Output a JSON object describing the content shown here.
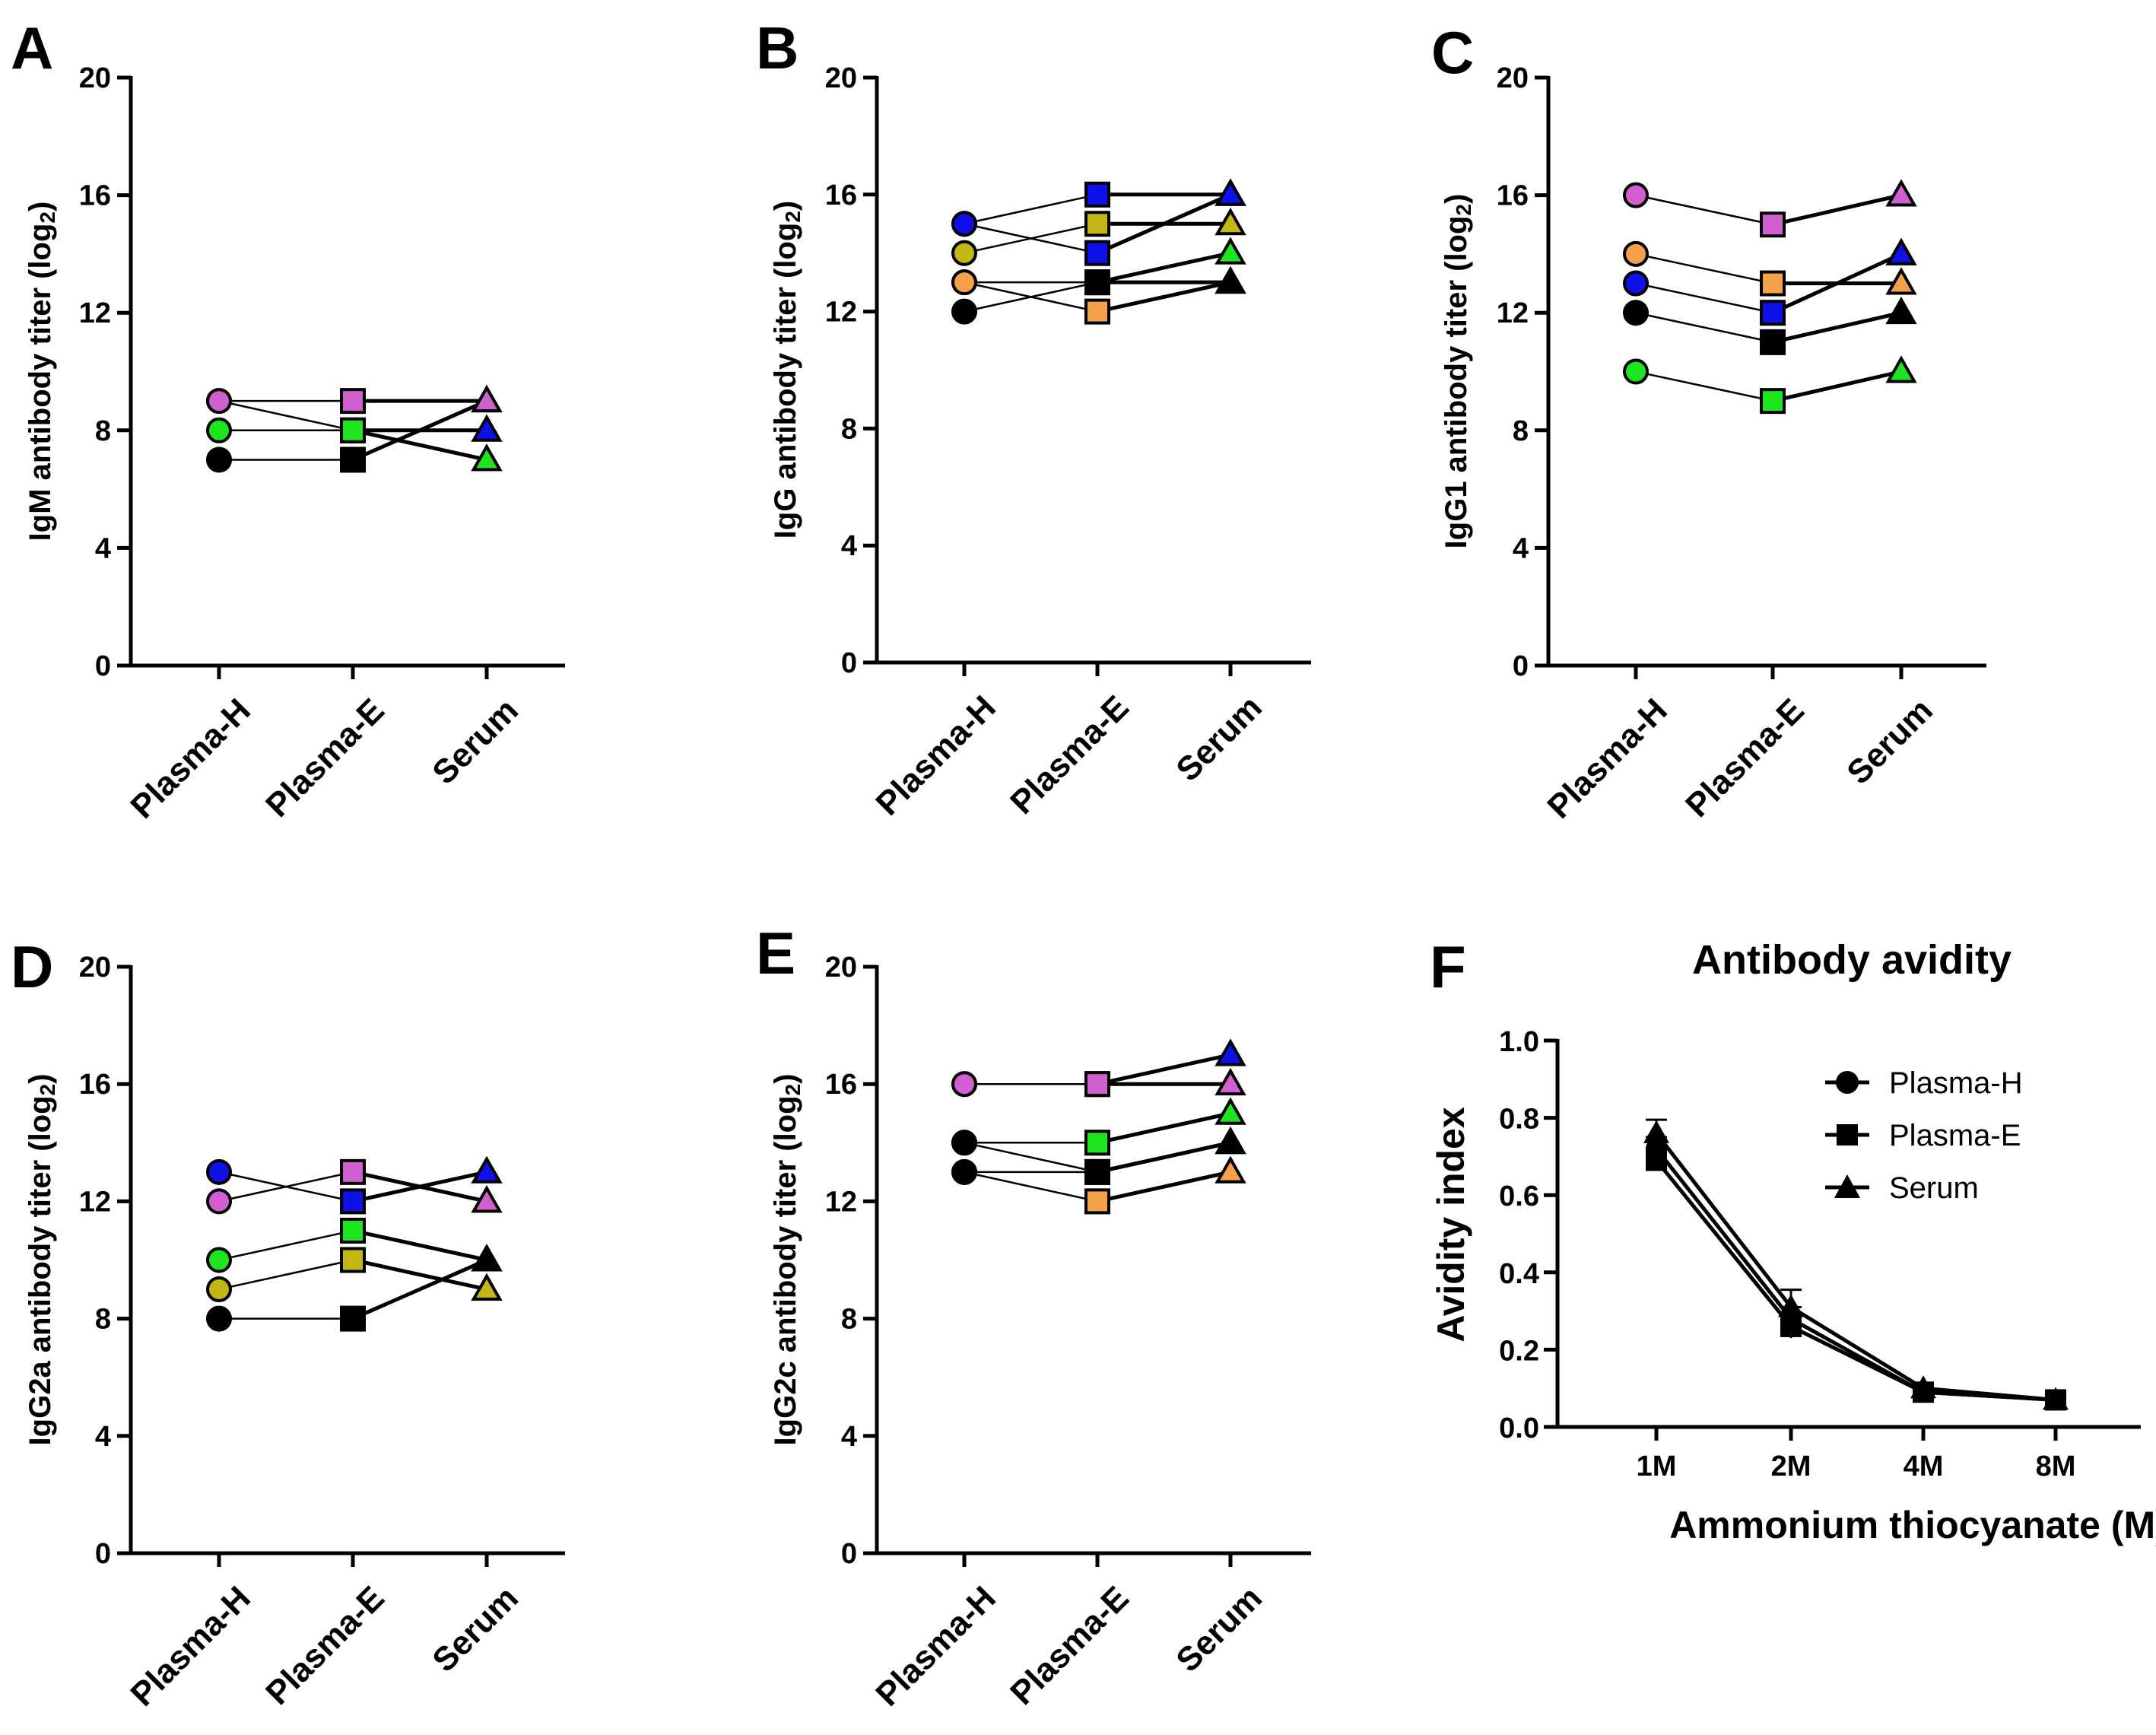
{
  "categories": [
    "Plasma-H",
    "Plasma-E",
    "Serum"
  ],
  "colors": {
    "blue": "#1010e8",
    "green": "#1ee61e",
    "magenta": "#d05fd0",
    "black": "#000000",
    "olive": "#c3b716",
    "orange": "#f5a04a",
    "gray": "#999999"
  },
  "chart_data": [
    {
      "type": "line",
      "panel": "A",
      "ylabel_main": "IgM antibody titer  (log",
      "ylabel_sub": "2",
      "ylabel_close": ")",
      "yticks": [
        "0",
        "4",
        "8",
        "12",
        "16",
        "20"
      ],
      "ylim": [
        0,
        20
      ],
      "series": [
        {
          "color": "blue",
          "values": [
            9,
            8,
            8
          ]
        },
        {
          "color": "green",
          "values": [
            8,
            8,
            7
          ]
        },
        {
          "color": "black",
          "values": [
            7,
            7,
            9
          ]
        },
        {
          "color": "magenta",
          "values": [
            9,
            9,
            9
          ]
        }
      ]
    },
    {
      "type": "line",
      "panel": "B",
      "ylabel_main": "IgG antibody titer  (log",
      "ylabel_sub": "2",
      "ylabel_close": ")",
      "yticks": [
        "0",
        "4",
        "8",
        "12",
        "16",
        "20"
      ],
      "ylim": [
        0,
        20
      ],
      "series": [
        {
          "color": "blue",
          "values": [
            15,
            16,
            16
          ]
        },
        {
          "color": "blue",
          "values": [
            15,
            14,
            16
          ]
        },
        {
          "color": "olive",
          "values": [
            14,
            15,
            15
          ]
        },
        {
          "color": "green",
          "values": [
            13,
            13,
            14
          ]
        },
        {
          "color": "orange",
          "values": [
            13,
            12,
            13
          ]
        },
        {
          "color": "black",
          "values": [
            12,
            13,
            13
          ]
        }
      ]
    },
    {
      "type": "line",
      "panel": "C",
      "ylabel_main": "IgG1 antibody titer  (log",
      "ylabel_sub": "2",
      "ylabel_close": ")",
      "yticks": [
        "0",
        "4",
        "8",
        "12",
        "16",
        "20"
      ],
      "ylim": [
        0,
        20
      ],
      "series": [
        {
          "color": "magenta",
          "values": [
            16,
            15,
            16
          ]
        },
        {
          "color": "orange",
          "values": [
            14,
            13,
            13
          ]
        },
        {
          "color": "blue",
          "values": [
            13,
            12,
            14
          ]
        },
        {
          "color": "black",
          "values": [
            12,
            11,
            12
          ]
        },
        {
          "color": "green",
          "values": [
            10,
            9,
            10
          ]
        }
      ]
    },
    {
      "type": "line",
      "panel": "D",
      "ylabel_main": "IgG2a antibody titer  (log",
      "ylabel_sub": "2",
      "ylabel_close": ")",
      "yticks": [
        "0",
        "4",
        "8",
        "12",
        "16",
        "20"
      ],
      "ylim": [
        0,
        20
      ],
      "series": [
        {
          "color": "blue",
          "values": [
            13,
            12,
            13
          ]
        },
        {
          "color": "magenta",
          "values": [
            12,
            13,
            12
          ]
        },
        {
          "color": "green",
          "values": [
            10,
            11,
            10
          ]
        },
        {
          "color": "olive",
          "values": [
            9,
            10,
            9
          ]
        },
        {
          "color": "black",
          "values": [
            8,
            8,
            10
          ]
        }
      ]
    },
    {
      "type": "line",
      "panel": "E",
      "ylabel_main": "IgG2c antibody titer  (log",
      "ylabel_sub": "2",
      "ylabel_close": ")",
      "yticks": [
        "0",
        "4",
        "8",
        "12",
        "16",
        "20"
      ],
      "ylim": [
        0,
        20
      ],
      "series": [
        {
          "color": "blue",
          "values": [
            16,
            16,
            17
          ]
        },
        {
          "color": "magenta",
          "values": [
            16,
            16,
            16
          ]
        },
        {
          "color": "green",
          "values": [
            14,
            14,
            15
          ]
        },
        {
          "color": "black",
          "values": [
            14,
            13,
            14
          ]
        },
        {
          "color": "orange",
          "values": [
            13,
            12,
            13
          ]
        },
        {
          "color": "black",
          "values": [
            13,
            13,
            14
          ]
        }
      ]
    },
    {
      "type": "line",
      "panel": "F",
      "title": "Antibody avidity",
      "xlabel": "Ammonium thiocyanate (M)",
      "ylabel": "Avidity index",
      "categories": [
        "1M",
        "2M",
        "4M",
        "8M"
      ],
      "yticks": [
        "0.0",
        "0.2",
        "0.4",
        "0.6",
        "0.8",
        "1.0"
      ],
      "ylim": [
        0,
        1.0
      ],
      "legend_position": "top-right",
      "series": [
        {
          "name": "Plasma-H",
          "marker": "circle",
          "values": [
            0.72,
            0.28,
            0.09,
            0.07
          ],
          "errors": [
            0.03,
            0.03,
            0.01,
            0.01
          ]
        },
        {
          "name": "Plasma-E",
          "marker": "square",
          "values": [
            0.69,
            0.26,
            0.09,
            0.07
          ],
          "errors": [
            0.02,
            0.03,
            0.01,
            0.01
          ]
        },
        {
          "name": "Serum",
          "marker": "triangle",
          "values": [
            0.76,
            0.31,
            0.1,
            0.07
          ],
          "errors": [
            0.035,
            0.045,
            0.01,
            0.01
          ]
        }
      ]
    }
  ]
}
